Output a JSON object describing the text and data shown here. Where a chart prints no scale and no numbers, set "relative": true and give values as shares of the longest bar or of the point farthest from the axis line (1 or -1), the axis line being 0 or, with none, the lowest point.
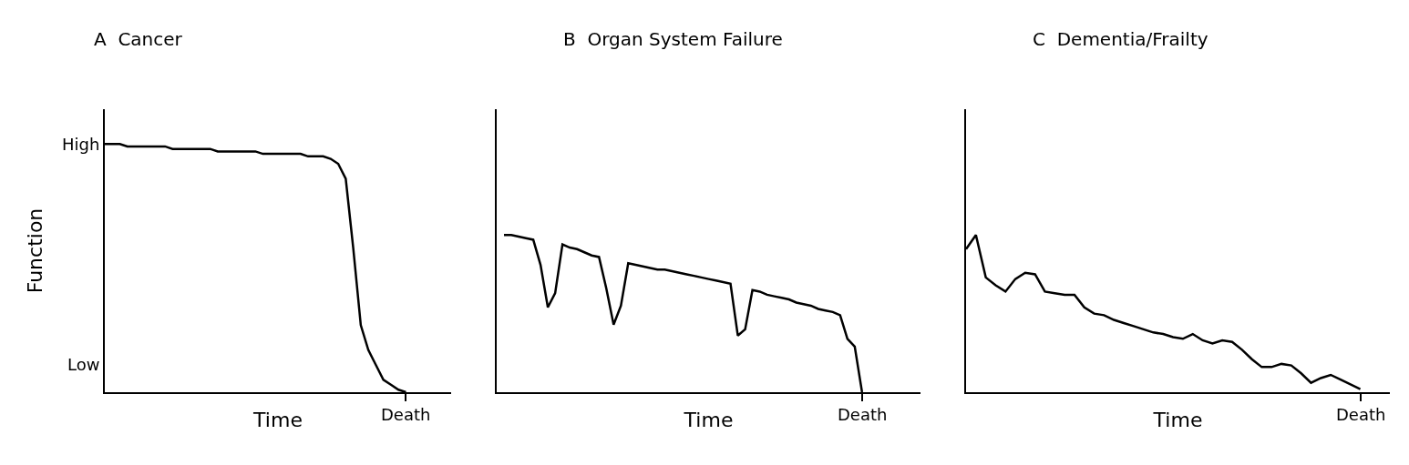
{
  "chart_data": [
    {
      "type": "line",
      "title": "A  Cancer",
      "xlabel": "Time",
      "ylabel": "Function",
      "relative": true,
      "annotations": [
        "High",
        "Low",
        "Death"
      ],
      "categories": [
        null,
        null,
        null,
        null,
        null,
        null,
        null,
        null,
        null,
        null,
        null,
        null,
        null,
        null,
        null,
        null,
        null,
        null,
        null,
        null,
        null,
        null,
        null,
        null,
        null,
        null,
        null,
        null,
        null,
        null,
        null,
        null,
        null,
        null,
        null,
        null,
        null,
        null,
        null,
        null,
        null,
        null,
        null,
        null,
        null,
        null,
        null
      ],
      "series": [
        {
          "color": "#000000",
          "values": [
            1,
            1,
            1,
            0.99,
            0.99,
            0.99,
            0.99,
            0.99,
            0.99,
            0.98,
            0.98,
            0.98,
            0.98,
            0.98,
            0.98,
            0.97,
            0.97,
            0.97,
            0.97,
            0.97,
            0.97,
            0.96,
            0.96,
            0.96,
            0.96,
            0.96,
            0.96,
            0.95,
            0.95,
            0.95,
            0.94,
            0.92,
            0.86,
            0.58,
            0.27,
            0.17,
            0.11,
            0.05,
            0.03,
            0.01,
            0,
            null,
            null,
            null,
            null,
            null,
            null
          ]
        }
      ]
    },
    {
      "type": "line",
      "title": "B  Organ System Failure",
      "xlabel": "Time",
      "relative": true,
      "annotations": [
        "Death"
      ],
      "categories": [
        null,
        null,
        null,
        null,
        null,
        null,
        null,
        null,
        null,
        null,
        null,
        null,
        null,
        null,
        null,
        null,
        null,
        null,
        null,
        null,
        null,
        null,
        null,
        null,
        null,
        null,
        null,
        null,
        null,
        null,
        null,
        null,
        null,
        null,
        null,
        null,
        null,
        null,
        null,
        null,
        null,
        null,
        null,
        null,
        null,
        null,
        null,
        null,
        null,
        null,
        null,
        null,
        null,
        null,
        null,
        null,
        null,
        null,
        null
      ],
      "series": [
        {
          "color": "#000000",
          "values": [
            null,
            1,
            1,
            0.99,
            0.98,
            0.97,
            0.81,
            0.54,
            0.63,
            0.94,
            0.92,
            0.91,
            0.89,
            0.87,
            0.86,
            0.66,
            0.43,
            0.55,
            0.82,
            0.81,
            0.8,
            0.79,
            0.78,
            0.78,
            0.77,
            0.76,
            0.75,
            0.74,
            0.73,
            0.72,
            0.71,
            0.7,
            0.69,
            0.36,
            0.4,
            0.65,
            0.64,
            0.62,
            0.61,
            0.6,
            0.59,
            0.57,
            0.56,
            0.55,
            0.53,
            0.52,
            0.51,
            0.49,
            0.34,
            0.29,
            0,
            null,
            null,
            null,
            null,
            null,
            null,
            null,
            null
          ]
        }
      ]
    },
    {
      "type": "line",
      "title": "C  Dementia/Frailty",
      "xlabel": "Time",
      "relative": true,
      "annotations": [
        "Death"
      ],
      "categories": [
        null,
        null,
        null,
        null,
        null,
        null,
        null,
        null,
        null,
        null,
        null,
        null,
        null,
        null,
        null,
        null,
        null,
        null,
        null,
        null,
        null,
        null,
        null,
        null,
        null,
        null,
        null,
        null,
        null,
        null,
        null,
        null,
        null,
        null,
        null,
        null,
        null,
        null,
        null,
        null,
        null,
        null,
        null,
        null
      ],
      "series": [
        {
          "color": "#000000",
          "values": [
            0.91,
            1,
            0.73,
            0.68,
            0.64,
            0.72,
            0.76,
            0.75,
            0.64,
            0.63,
            0.62,
            0.62,
            0.54,
            0.5,
            0.49,
            0.46,
            0.44,
            0.42,
            0.4,
            0.38,
            0.37,
            0.35,
            0.34,
            0.37,
            0.33,
            0.31,
            0.33,
            0.32,
            0.27,
            0.21,
            0.16,
            0.16,
            0.18,
            0.17,
            0.12,
            0.06,
            0.09,
            0.11,
            0.08,
            0.05,
            0.02,
            null,
            null,
            null
          ]
        }
      ]
    }
  ]
}
